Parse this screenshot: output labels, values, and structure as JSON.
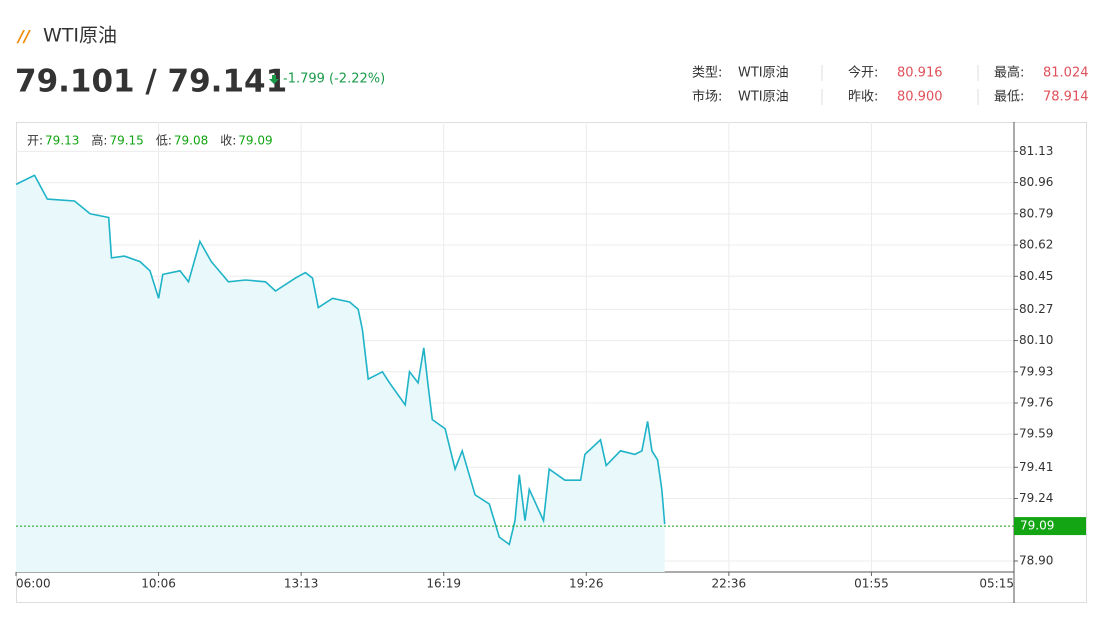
{
  "header": {
    "icon": "//",
    "title": "WTI原油",
    "price": "79.101 / 79.141",
    "change": "-1.799 (-2.22%)",
    "info": [
      [
        {
          "k": "类型:",
          "v": "WTI原油"
        },
        {
          "k": "今开:",
          "v": "80.916"
        },
        {
          "k": "最高:",
          "v": "81.024"
        }
      ],
      [
        {
          "k": "市场:",
          "v": "WTI原油"
        },
        {
          "k": "昨收:",
          "v": "80.900"
        },
        {
          "k": "最低:",
          "v": "78.914"
        }
      ]
    ]
  },
  "quote_bar": [
    {
      "label": "开:",
      "value": "79.13"
    },
    {
      "label": "高:",
      "value": "79.15"
    },
    {
      "label": "低:",
      "value": "79.08"
    },
    {
      "label": "收:",
      "value": "79.09"
    }
  ],
  "chart_data": {
    "type": "line",
    "series": [
      {
        "color": "#1fb3c8",
        "x": [
          0.0,
          0.13,
          0.22,
          0.41,
          0.52,
          0.65,
          0.67,
          0.76,
          0.87,
          0.94,
          1.0,
          1.03,
          1.15,
          1.21,
          1.29,
          1.37,
          1.49,
          1.61,
          1.75,
          1.82,
          1.96,
          2.03,
          2.08,
          2.12,
          2.22,
          2.34,
          2.4,
          2.43,
          2.47,
          2.57,
          2.62,
          2.73,
          2.76,
          2.82,
          2.86,
          2.89,
          2.92,
          3.01,
          3.08,
          3.13,
          3.22,
          3.32,
          3.39,
          3.46,
          3.5,
          3.53,
          3.57,
          3.6,
          3.7,
          3.74,
          3.85,
          3.96,
          3.99,
          4.1,
          4.14,
          4.24,
          4.34,
          4.39,
          4.43,
          4.46,
          4.5,
          4.53,
          4.55
        ],
        "values": [
          80.95,
          81.0,
          80.87,
          80.86,
          80.79,
          80.77,
          80.55,
          80.56,
          80.53,
          80.48,
          80.33,
          80.46,
          80.48,
          80.42,
          80.64,
          80.53,
          80.42,
          80.43,
          80.42,
          80.37,
          80.44,
          80.47,
          80.44,
          80.28,
          80.33,
          80.31,
          80.27,
          80.16,
          79.89,
          79.93,
          79.87,
          79.75,
          79.93,
          79.87,
          80.06,
          79.86,
          79.67,
          79.62,
          79.4,
          79.5,
          79.26,
          79.21,
          79.03,
          78.99,
          79.12,
          79.37,
          79.12,
          79.29,
          79.12,
          79.4,
          79.34,
          79.34,
          79.48,
          79.56,
          79.42,
          79.5,
          79.48,
          79.5,
          79.66,
          79.5,
          79.45,
          79.29,
          79.1
        ]
      }
    ],
    "last": {
      "value": 79.09,
      "color": "#13a513"
    },
    "xlim": [
      0,
      7
    ],
    "xticks": [
      {
        "value": 0,
        "label": "06:00"
      },
      {
        "value": 1,
        "label": "10:06"
      },
      {
        "value": 2,
        "label": "13:13"
      },
      {
        "value": 3,
        "label": "16:19"
      },
      {
        "value": 4,
        "label": "19:26"
      },
      {
        "value": 5,
        "label": "22:36"
      },
      {
        "value": 6,
        "label": "01:55"
      },
      {
        "value": 7,
        "label": "05:15"
      }
    ],
    "ylim": [
      78.84,
      81.29
    ],
    "yticks": [
      81.13,
      80.96,
      80.79,
      80.62,
      80.45,
      80.27,
      {
        "value": 80.1,
        "label": "80.10"
      },
      79.93,
      79.76,
      79.59,
      79.41,
      79.24,
      {
        "value": 78.9,
        "label": "78.90"
      }
    ],
    "grid": true
  }
}
